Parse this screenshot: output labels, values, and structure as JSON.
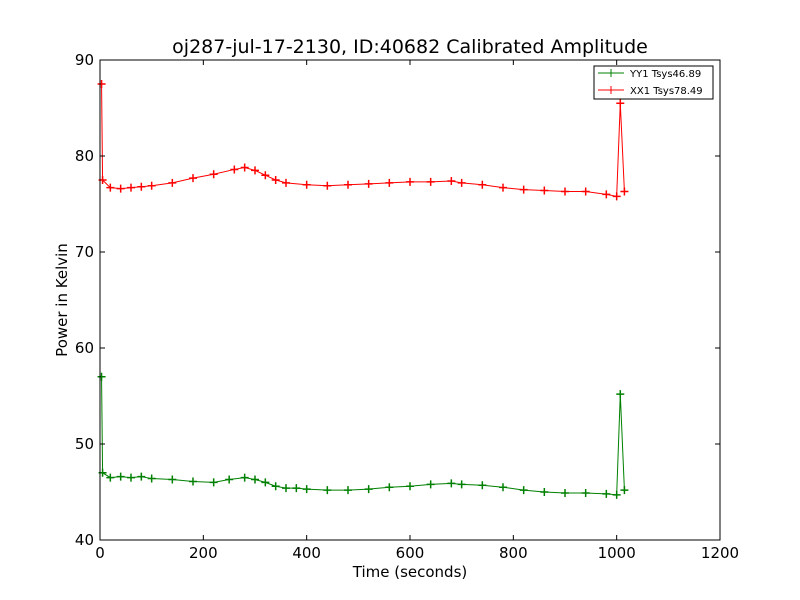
{
  "chart_data": {
    "type": "line",
    "title": "oj287-jul-17-2130, ID:40682 Calibrated Amplitude",
    "xlabel": "Time (seconds)",
    "ylabel": "Power in Kelvin",
    "xlim": [
      0,
      1200
    ],
    "ylim": [
      40,
      90
    ],
    "xticks": [
      "0",
      "200",
      "400",
      "600",
      "800",
      "1000",
      "1200"
    ],
    "yticks": [
      "40",
      "50",
      "60",
      "70",
      "80",
      "90"
    ],
    "grid": false,
    "legend_position": "top-right",
    "series": [
      {
        "name": "YY1 Tsys46.89",
        "color": "#008000",
        "marker": "+",
        "points": [
          [
            3,
            57
          ],
          [
            5,
            47
          ],
          [
            20,
            46.5
          ],
          [
            40,
            46.6
          ],
          [
            60,
            46.5
          ],
          [
            80,
            46.6
          ],
          [
            100,
            46.4
          ],
          [
            140,
            46.3
          ],
          [
            180,
            46.1
          ],
          [
            220,
            46.0
          ],
          [
            250,
            46.3
          ],
          [
            280,
            46.5
          ],
          [
            300,
            46.3
          ],
          [
            320,
            46.0
          ],
          [
            340,
            45.6
          ],
          [
            360,
            45.4
          ],
          [
            380,
            45.4
          ],
          [
            400,
            45.3
          ],
          [
            440,
            45.2
          ],
          [
            480,
            45.2
          ],
          [
            520,
            45.3
          ],
          [
            560,
            45.5
          ],
          [
            600,
            45.6
          ],
          [
            640,
            45.8
          ],
          [
            680,
            45.9
          ],
          [
            700,
            45.8
          ],
          [
            740,
            45.7
          ],
          [
            780,
            45.5
          ],
          [
            820,
            45.2
          ],
          [
            860,
            45.0
          ],
          [
            900,
            44.9
          ],
          [
            940,
            44.9
          ],
          [
            980,
            44.8
          ],
          [
            1000,
            44.7
          ],
          [
            1007,
            55.2
          ],
          [
            1015,
            45.2
          ]
        ]
      },
      {
        "name": "XX1 Tsys78.49",
        "color": "#ff0000",
        "marker": "+",
        "points": [
          [
            3,
            87.5
          ],
          [
            5,
            77.5
          ],
          [
            20,
            76.7
          ],
          [
            40,
            76.6
          ],
          [
            60,
            76.7
          ],
          [
            80,
            76.8
          ],
          [
            100,
            76.9
          ],
          [
            140,
            77.2
          ],
          [
            180,
            77.7
          ],
          [
            220,
            78.1
          ],
          [
            260,
            78.6
          ],
          [
            280,
            78.8
          ],
          [
            300,
            78.5
          ],
          [
            320,
            78.0
          ],
          [
            340,
            77.5
          ],
          [
            360,
            77.2
          ],
          [
            400,
            77.0
          ],
          [
            440,
            76.9
          ],
          [
            480,
            77.0
          ],
          [
            520,
            77.1
          ],
          [
            560,
            77.2
          ],
          [
            600,
            77.3
          ],
          [
            640,
            77.3
          ],
          [
            680,
            77.4
          ],
          [
            700,
            77.2
          ],
          [
            740,
            77.0
          ],
          [
            780,
            76.7
          ],
          [
            820,
            76.5
          ],
          [
            860,
            76.4
          ],
          [
            900,
            76.3
          ],
          [
            940,
            76.3
          ],
          [
            980,
            76.0
          ],
          [
            1000,
            75.8
          ],
          [
            1007,
            85.5
          ],
          [
            1015,
            76.3
          ]
        ]
      }
    ]
  }
}
